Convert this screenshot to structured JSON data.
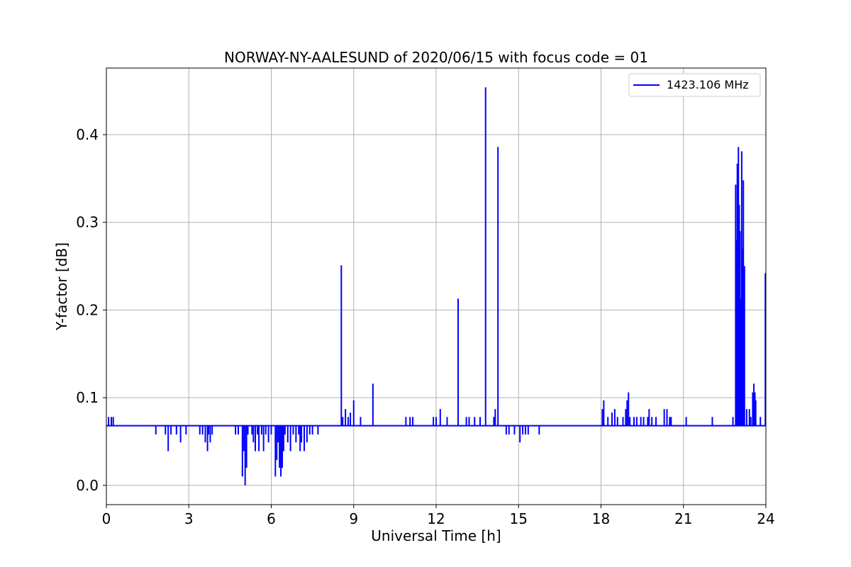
{
  "chart_data": {
    "type": "line",
    "title": "NORWAY-NY-AALESUND of 2020/06/15 with focus code = 01",
    "xlabel": "Universal Time [h]",
    "ylabel": "Y-factor [dB]",
    "xlim": [
      0,
      24
    ],
    "ylim": [
      -0.022,
      0.476
    ],
    "xticks": [
      0,
      3,
      6,
      9,
      12,
      15,
      18,
      21,
      24
    ],
    "xtick_labels": [
      "0",
      "3",
      "6",
      "9",
      "12",
      "15",
      "18",
      "21",
      "24"
    ],
    "yticks": [
      0.0,
      0.1,
      0.2,
      0.3,
      0.4
    ],
    "ytick_labels": [
      "0.0",
      "0.1",
      "0.2",
      "0.3",
      "0.4"
    ],
    "grid": true,
    "legend_position": "top-right",
    "baseline": 0.068,
    "series": [
      {
        "name": "1423.106 MHz",
        "color": "#0000ff",
        "spikes": [
          {
            "x": 0.08,
            "y": 0.078
          },
          {
            "x": 0.18,
            "y": 0.078
          },
          {
            "x": 0.25,
            "y": 0.078
          },
          {
            "x": 1.8,
            "y": 0.058
          },
          {
            "x": 2.15,
            "y": 0.058
          },
          {
            "x": 2.25,
            "y": 0.039
          },
          {
            "x": 2.35,
            "y": 0.058
          },
          {
            "x": 2.55,
            "y": 0.058
          },
          {
            "x": 2.7,
            "y": 0.049
          },
          {
            "x": 2.9,
            "y": 0.058
          },
          {
            "x": 3.4,
            "y": 0.058
          },
          {
            "x": 3.5,
            "y": 0.058
          },
          {
            "x": 3.6,
            "y": 0.049
          },
          {
            "x": 3.68,
            "y": 0.039
          },
          {
            "x": 3.72,
            "y": 0.058
          },
          {
            "x": 3.78,
            "y": 0.049
          },
          {
            "x": 3.85,
            "y": 0.058
          },
          {
            "x": 4.7,
            "y": 0.058
          },
          {
            "x": 4.8,
            "y": 0.058
          },
          {
            "x": 4.95,
            "y": 0.01
          },
          {
            "x": 5.0,
            "y": 0.039
          },
          {
            "x": 5.05,
            "y": 0.0
          },
          {
            "x": 5.1,
            "y": 0.02
          },
          {
            "x": 5.15,
            "y": 0.058
          },
          {
            "x": 5.3,
            "y": 0.058
          },
          {
            "x": 5.35,
            "y": 0.049
          },
          {
            "x": 5.42,
            "y": 0.039
          },
          {
            "x": 5.5,
            "y": 0.058
          },
          {
            "x": 5.55,
            "y": 0.039
          },
          {
            "x": 5.65,
            "y": 0.058
          },
          {
            "x": 5.72,
            "y": 0.039
          },
          {
            "x": 5.8,
            "y": 0.058
          },
          {
            "x": 5.9,
            "y": 0.049
          },
          {
            "x": 6.0,
            "y": 0.058
          },
          {
            "x": 6.15,
            "y": 0.01
          },
          {
            "x": 6.2,
            "y": 0.029
          },
          {
            "x": 6.25,
            "y": 0.049
          },
          {
            "x": 6.3,
            "y": 0.02
          },
          {
            "x": 6.35,
            "y": 0.01
          },
          {
            "x": 6.4,
            "y": 0.02
          },
          {
            "x": 6.45,
            "y": 0.039
          },
          {
            "x": 6.5,
            "y": 0.058
          },
          {
            "x": 6.6,
            "y": 0.049
          },
          {
            "x": 6.7,
            "y": 0.039
          },
          {
            "x": 6.8,
            "y": 0.058
          },
          {
            "x": 6.9,
            "y": 0.049
          },
          {
            "x": 7.0,
            "y": 0.058
          },
          {
            "x": 7.05,
            "y": 0.039
          },
          {
            "x": 7.1,
            "y": 0.049
          },
          {
            "x": 7.2,
            "y": 0.039
          },
          {
            "x": 7.3,
            "y": 0.049
          },
          {
            "x": 7.4,
            "y": 0.058
          },
          {
            "x": 7.5,
            "y": 0.058
          },
          {
            "x": 7.7,
            "y": 0.058
          },
          {
            "x": 8.55,
            "y": 0.251
          },
          {
            "x": 8.6,
            "y": 0.078
          },
          {
            "x": 8.7,
            "y": 0.087
          },
          {
            "x": 8.8,
            "y": 0.078
          },
          {
            "x": 8.88,
            "y": 0.083
          },
          {
            "x": 9.0,
            "y": 0.097
          },
          {
            "x": 9.25,
            "y": 0.078
          },
          {
            "x": 9.7,
            "y": 0.116
          },
          {
            "x": 10.9,
            "y": 0.078
          },
          {
            "x": 11.05,
            "y": 0.078
          },
          {
            "x": 11.15,
            "y": 0.078
          },
          {
            "x": 11.9,
            "y": 0.078
          },
          {
            "x": 12.0,
            "y": 0.078
          },
          {
            "x": 12.15,
            "y": 0.087
          },
          {
            "x": 12.4,
            "y": 0.078
          },
          {
            "x": 12.8,
            "y": 0.213
          },
          {
            "x": 13.1,
            "y": 0.078
          },
          {
            "x": 13.2,
            "y": 0.078
          },
          {
            "x": 13.4,
            "y": 0.078
          },
          {
            "x": 13.6,
            "y": 0.078
          },
          {
            "x": 13.8,
            "y": 0.454
          },
          {
            "x": 14.1,
            "y": 0.078
          },
          {
            "x": 14.15,
            "y": 0.087
          },
          {
            "x": 14.25,
            "y": 0.386
          },
          {
            "x": 14.55,
            "y": 0.058
          },
          {
            "x": 14.65,
            "y": 0.058
          },
          {
            "x": 14.85,
            "y": 0.058
          },
          {
            "x": 15.05,
            "y": 0.049
          },
          {
            "x": 15.15,
            "y": 0.058
          },
          {
            "x": 15.25,
            "y": 0.058
          },
          {
            "x": 15.35,
            "y": 0.058
          },
          {
            "x": 15.75,
            "y": 0.058
          },
          {
            "x": 18.05,
            "y": 0.087
          },
          {
            "x": 18.1,
            "y": 0.097
          },
          {
            "x": 18.25,
            "y": 0.078
          },
          {
            "x": 18.4,
            "y": 0.083
          },
          {
            "x": 18.5,
            "y": 0.087
          },
          {
            "x": 18.6,
            "y": 0.078
          },
          {
            "x": 18.8,
            "y": 0.078
          },
          {
            "x": 18.9,
            "y": 0.087
          },
          {
            "x": 18.95,
            "y": 0.097
          },
          {
            "x": 19.0,
            "y": 0.106
          },
          {
            "x": 19.05,
            "y": 0.078
          },
          {
            "x": 19.2,
            "y": 0.078
          },
          {
            "x": 19.3,
            "y": 0.078
          },
          {
            "x": 19.45,
            "y": 0.078
          },
          {
            "x": 19.55,
            "y": 0.078
          },
          {
            "x": 19.7,
            "y": 0.078
          },
          {
            "x": 19.75,
            "y": 0.087
          },
          {
            "x": 19.85,
            "y": 0.078
          },
          {
            "x": 20.0,
            "y": 0.078
          },
          {
            "x": 20.3,
            "y": 0.087
          },
          {
            "x": 20.4,
            "y": 0.087
          },
          {
            "x": 20.5,
            "y": 0.078
          },
          {
            "x": 20.55,
            "y": 0.078
          },
          {
            "x": 21.1,
            "y": 0.078
          },
          {
            "x": 22.05,
            "y": 0.078
          },
          {
            "x": 22.8,
            "y": 0.078
          },
          {
            "x": 22.9,
            "y": 0.343
          },
          {
            "x": 22.93,
            "y": 0.28
          },
          {
            "x": 22.96,
            "y": 0.367
          },
          {
            "x": 23.0,
            "y": 0.386
          },
          {
            "x": 23.03,
            "y": 0.32
          },
          {
            "x": 23.06,
            "y": 0.29
          },
          {
            "x": 23.09,
            "y": 0.213
          },
          {
            "x": 23.12,
            "y": 0.381
          },
          {
            "x": 23.15,
            "y": 0.27
          },
          {
            "x": 23.18,
            "y": 0.348
          },
          {
            "x": 23.22,
            "y": 0.25
          },
          {
            "x": 23.3,
            "y": 0.087
          },
          {
            "x": 23.4,
            "y": 0.087
          },
          {
            "x": 23.45,
            "y": 0.078
          },
          {
            "x": 23.52,
            "y": 0.106
          },
          {
            "x": 23.56,
            "y": 0.116
          },
          {
            "x": 23.6,
            "y": 0.106
          },
          {
            "x": 23.63,
            "y": 0.097
          },
          {
            "x": 23.8,
            "y": 0.078
          },
          {
            "x": 23.98,
            "y": 0.242
          }
        ],
        "dips_below_baseline": [
          {
            "x": 23.3,
            "y": 0.068
          }
        ]
      }
    ]
  }
}
